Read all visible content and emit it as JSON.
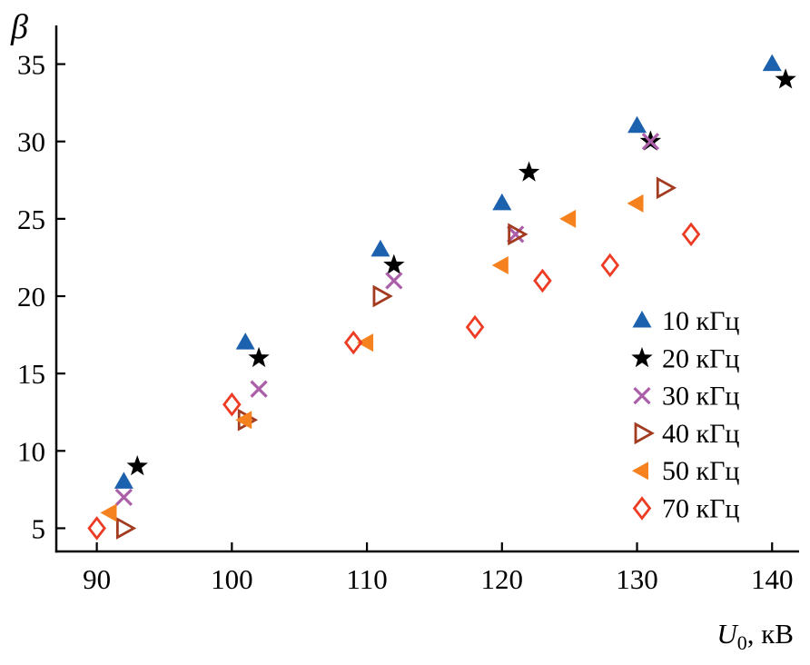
{
  "chart_data": {
    "type": "scatter",
    "title": "",
    "ylabel": "β",
    "xlabel_var": "U",
    "xlabel_sub": "0",
    "xlabel_rest": ", кВ",
    "xlim": [
      87,
      142
    ],
    "ylim": [
      3.5,
      37.5
    ],
    "x_ticks": [
      90,
      100,
      110,
      120,
      130,
      140
    ],
    "y_ticks": [
      5,
      10,
      15,
      20,
      25,
      30,
      35
    ],
    "grid": false,
    "legend_position": "right-middle",
    "axis_color": "#000000",
    "series": [
      {
        "name": "10 кГц",
        "marker": "triangle-up",
        "color": "#1c61ae",
        "points": [
          [
            92,
            8
          ],
          [
            101,
            17
          ],
          [
            111,
            23
          ],
          [
            120,
            26
          ],
          [
            130,
            31
          ],
          [
            140,
            35
          ]
        ]
      },
      {
        "name": "20 кГц",
        "marker": "star",
        "color": "#000000",
        "points": [
          [
            93,
            9
          ],
          [
            102,
            16
          ],
          [
            112,
            22
          ],
          [
            122,
            28
          ],
          [
            131,
            30
          ],
          [
            141,
            34
          ]
        ]
      },
      {
        "name": "30 кГц",
        "marker": "x-cross",
        "color": "#ab5fa9",
        "points": [
          [
            92,
            7
          ],
          [
            102,
            14
          ],
          [
            112,
            21
          ],
          [
            121,
            24
          ],
          [
            131,
            30
          ]
        ]
      },
      {
        "name": "40 кГц",
        "marker": "triangle-right-open",
        "color": "#a23b20",
        "points": [
          [
            92,
            5
          ],
          [
            101,
            12
          ],
          [
            111,
            20
          ],
          [
            121,
            24
          ],
          [
            132,
            27
          ]
        ]
      },
      {
        "name": "50 кГц",
        "marker": "triangle-left",
        "color": "#f5821f",
        "points": [
          [
            91,
            6
          ],
          [
            101,
            12
          ],
          [
            110,
            17
          ],
          [
            120,
            22
          ],
          [
            125,
            25
          ],
          [
            130,
            26
          ]
        ]
      },
      {
        "name": "70 кГц",
        "marker": "diamond-open",
        "color": "#ed3b24",
        "points": [
          [
            90,
            5
          ],
          [
            100,
            13
          ],
          [
            109,
            17
          ],
          [
            118,
            18
          ],
          [
            123,
            21
          ],
          [
            128,
            22
          ],
          [
            134,
            24
          ]
        ]
      }
    ]
  }
}
